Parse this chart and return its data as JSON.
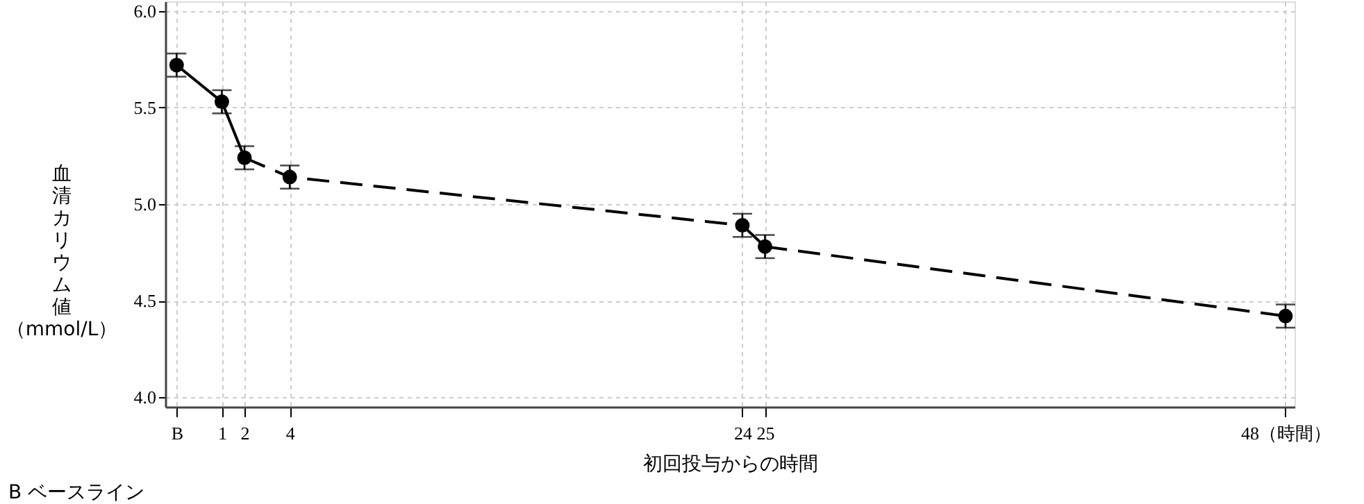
{
  "chart_data": {
    "type": "line",
    "xlabel": "初回投与からの時間",
    "ylabel": "血清カリウム値（mmol/L）",
    "annotations": [
      "B ベースライン"
    ],
    "xlim": [
      -1.5,
      48.4
    ],
    "ylim": [
      3.95,
      6.05
    ],
    "xticks": [
      {
        "value": -1,
        "label": "B"
      },
      1,
      2,
      4,
      24,
      25,
      {
        "value": 48,
        "label": "48（時間）"
      }
    ],
    "yticks": [
      {
        "value": 4,
        "label": "4.0"
      },
      {
        "value": 4.5,
        "label": "4.5"
      },
      {
        "value": 5,
        "label": "5.0"
      },
      {
        "value": 5.5,
        "label": "5.5"
      },
      {
        "value": 6,
        "label": "6.0"
      }
    ],
    "grid": true,
    "series": [
      {
        "x": [
          -1,
          1,
          2
        ],
        "values": [
          5.72,
          5.53,
          5.24
        ],
        "color": "#000000",
        "line_style": "solid",
        "marker": "none"
      },
      {
        "x": [
          2,
          4,
          24
        ],
        "values": [
          5.24,
          5.14,
          4.89
        ],
        "color": "#000000",
        "line_style": "dashed",
        "marker": "none"
      },
      {
        "x": [
          24,
          25
        ],
        "values": [
          4.89,
          4.78
        ],
        "color": "#000000",
        "line_style": "solid",
        "marker": "none"
      },
      {
        "x": [
          25,
          48
        ],
        "values": [
          4.78,
          4.42
        ],
        "color": "#000000",
        "line_style": "dashed",
        "marker": "none"
      },
      {
        "type": "scatter",
        "x": [
          -1,
          1,
          2,
          4,
          24,
          25,
          48
        ],
        "values": [
          5.72,
          5.53,
          5.24,
          5.14,
          4.89,
          4.78,
          4.42
        ],
        "errors": [
          0.06,
          0.06,
          0.06,
          0.06,
          0.06,
          0.06,
          0.06
        ],
        "color": "#000000",
        "marker": "circle"
      }
    ]
  }
}
